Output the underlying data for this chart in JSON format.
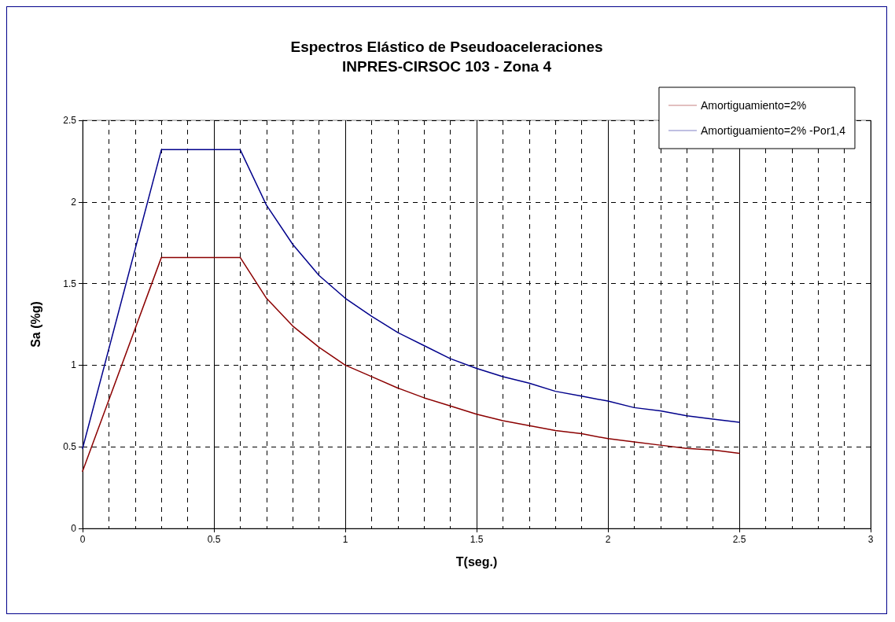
{
  "chart_data": {
    "type": "line",
    "title": "Espectros Elástico de Pseudoaceleraciones",
    "subtitle": "INPRES-CIRSOC 103 - Zona 4",
    "xlabel": "T(seg.)",
    "ylabel": "Sa (%g)",
    "x": [
      0,
      0.3,
      0.6,
      0.7,
      0.8,
      0.9,
      1.0,
      1.1,
      1.2,
      1.3,
      1.4,
      1.5,
      1.6,
      1.7,
      1.8,
      1.9,
      2.0,
      2.1,
      2.2,
      2.3,
      2.4,
      2.5
    ],
    "series": [
      {
        "name": "Amortiguamiento=2%",
        "color": "#8b0000",
        "values": [
          0.35,
          1.66,
          1.66,
          1.41,
          1.24,
          1.11,
          1.0,
          0.93,
          0.86,
          0.8,
          0.75,
          0.7,
          0.66,
          0.63,
          0.6,
          0.58,
          0.55,
          0.53,
          0.51,
          0.49,
          0.48,
          0.46
        ]
      },
      {
        "name": "Amortiguamiento=2% -Por1,4",
        "color": "#00008b",
        "values": [
          0.49,
          2.32,
          2.32,
          1.98,
          1.74,
          1.55,
          1.41,
          1.3,
          1.2,
          1.12,
          1.04,
          0.98,
          0.93,
          0.89,
          0.84,
          0.81,
          0.78,
          0.74,
          0.72,
          0.69,
          0.67,
          0.65
        ]
      }
    ],
    "xlim": [
      0,
      3
    ],
    "xticks": [
      0,
      0.5,
      1,
      1.5,
      2,
      2.5,
      3
    ],
    "ylim": [
      0,
      2.5
    ],
    "yticks": [
      0,
      0.5,
      1,
      1.5,
      2,
      2.5
    ],
    "grid": true,
    "legend": "top right",
    "marker": "none",
    "line_style": "solid"
  }
}
